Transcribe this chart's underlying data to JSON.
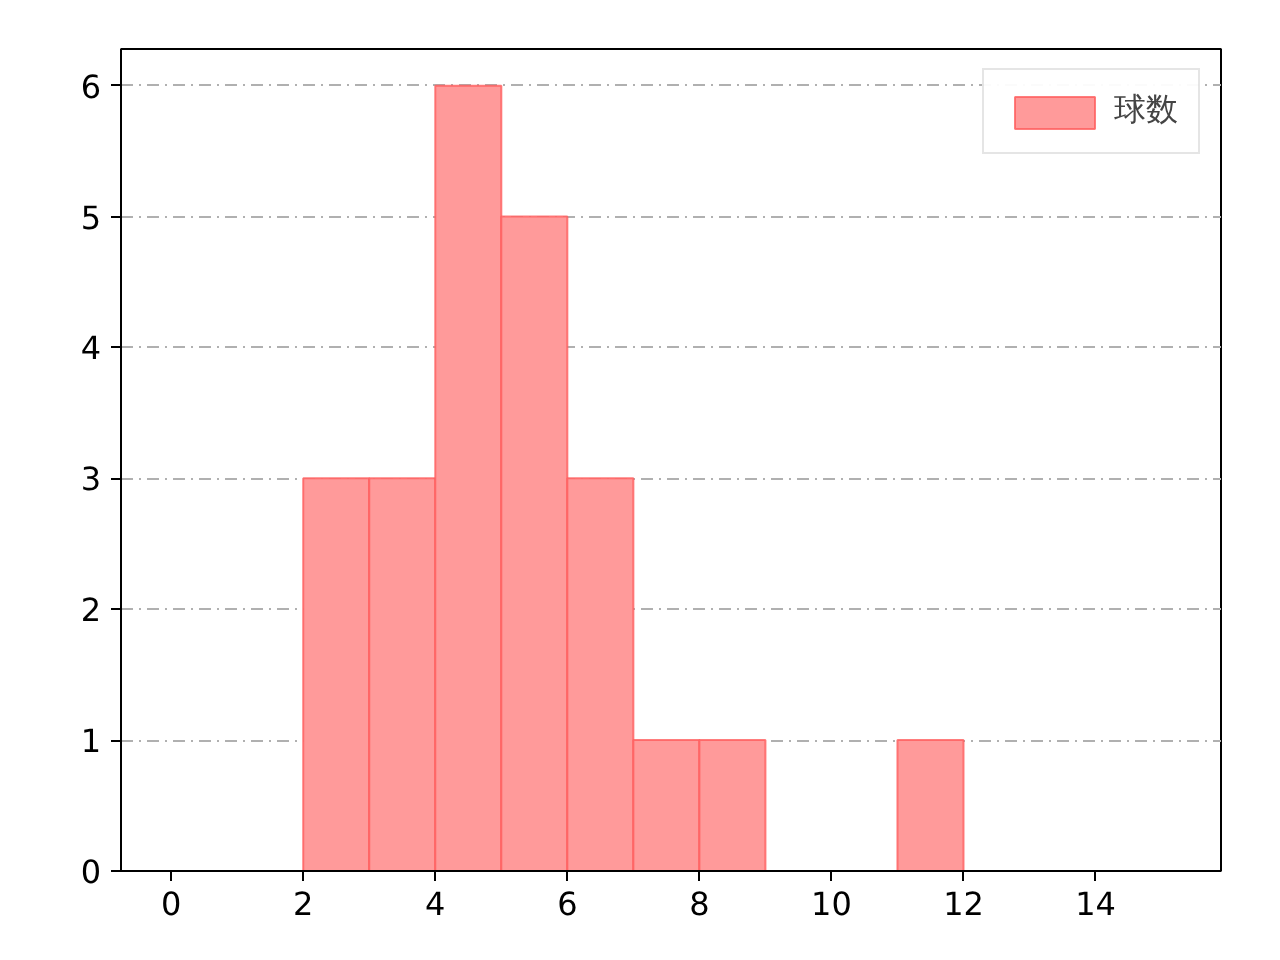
{
  "chart_data": {
    "type": "histogram",
    "bins": [
      2,
      3,
      4,
      5,
      6,
      7,
      8,
      9,
      10,
      11,
      12
    ],
    "series": [
      {
        "name": "球数",
        "color": "#ff9a9a",
        "values": [
          3,
          3,
          6,
          5,
          3,
          1,
          1,
          0,
          0,
          1
        ]
      }
    ],
    "xlim": [
      -0.76,
      15.9
    ],
    "ylim": [
      0,
      6.28
    ],
    "xticks": [
      0,
      2,
      4,
      6,
      8,
      10,
      12,
      14
    ],
    "yticks": [
      0,
      1,
      2,
      3,
      4,
      5,
      6
    ],
    "grid": "y",
    "legend": "top right"
  }
}
